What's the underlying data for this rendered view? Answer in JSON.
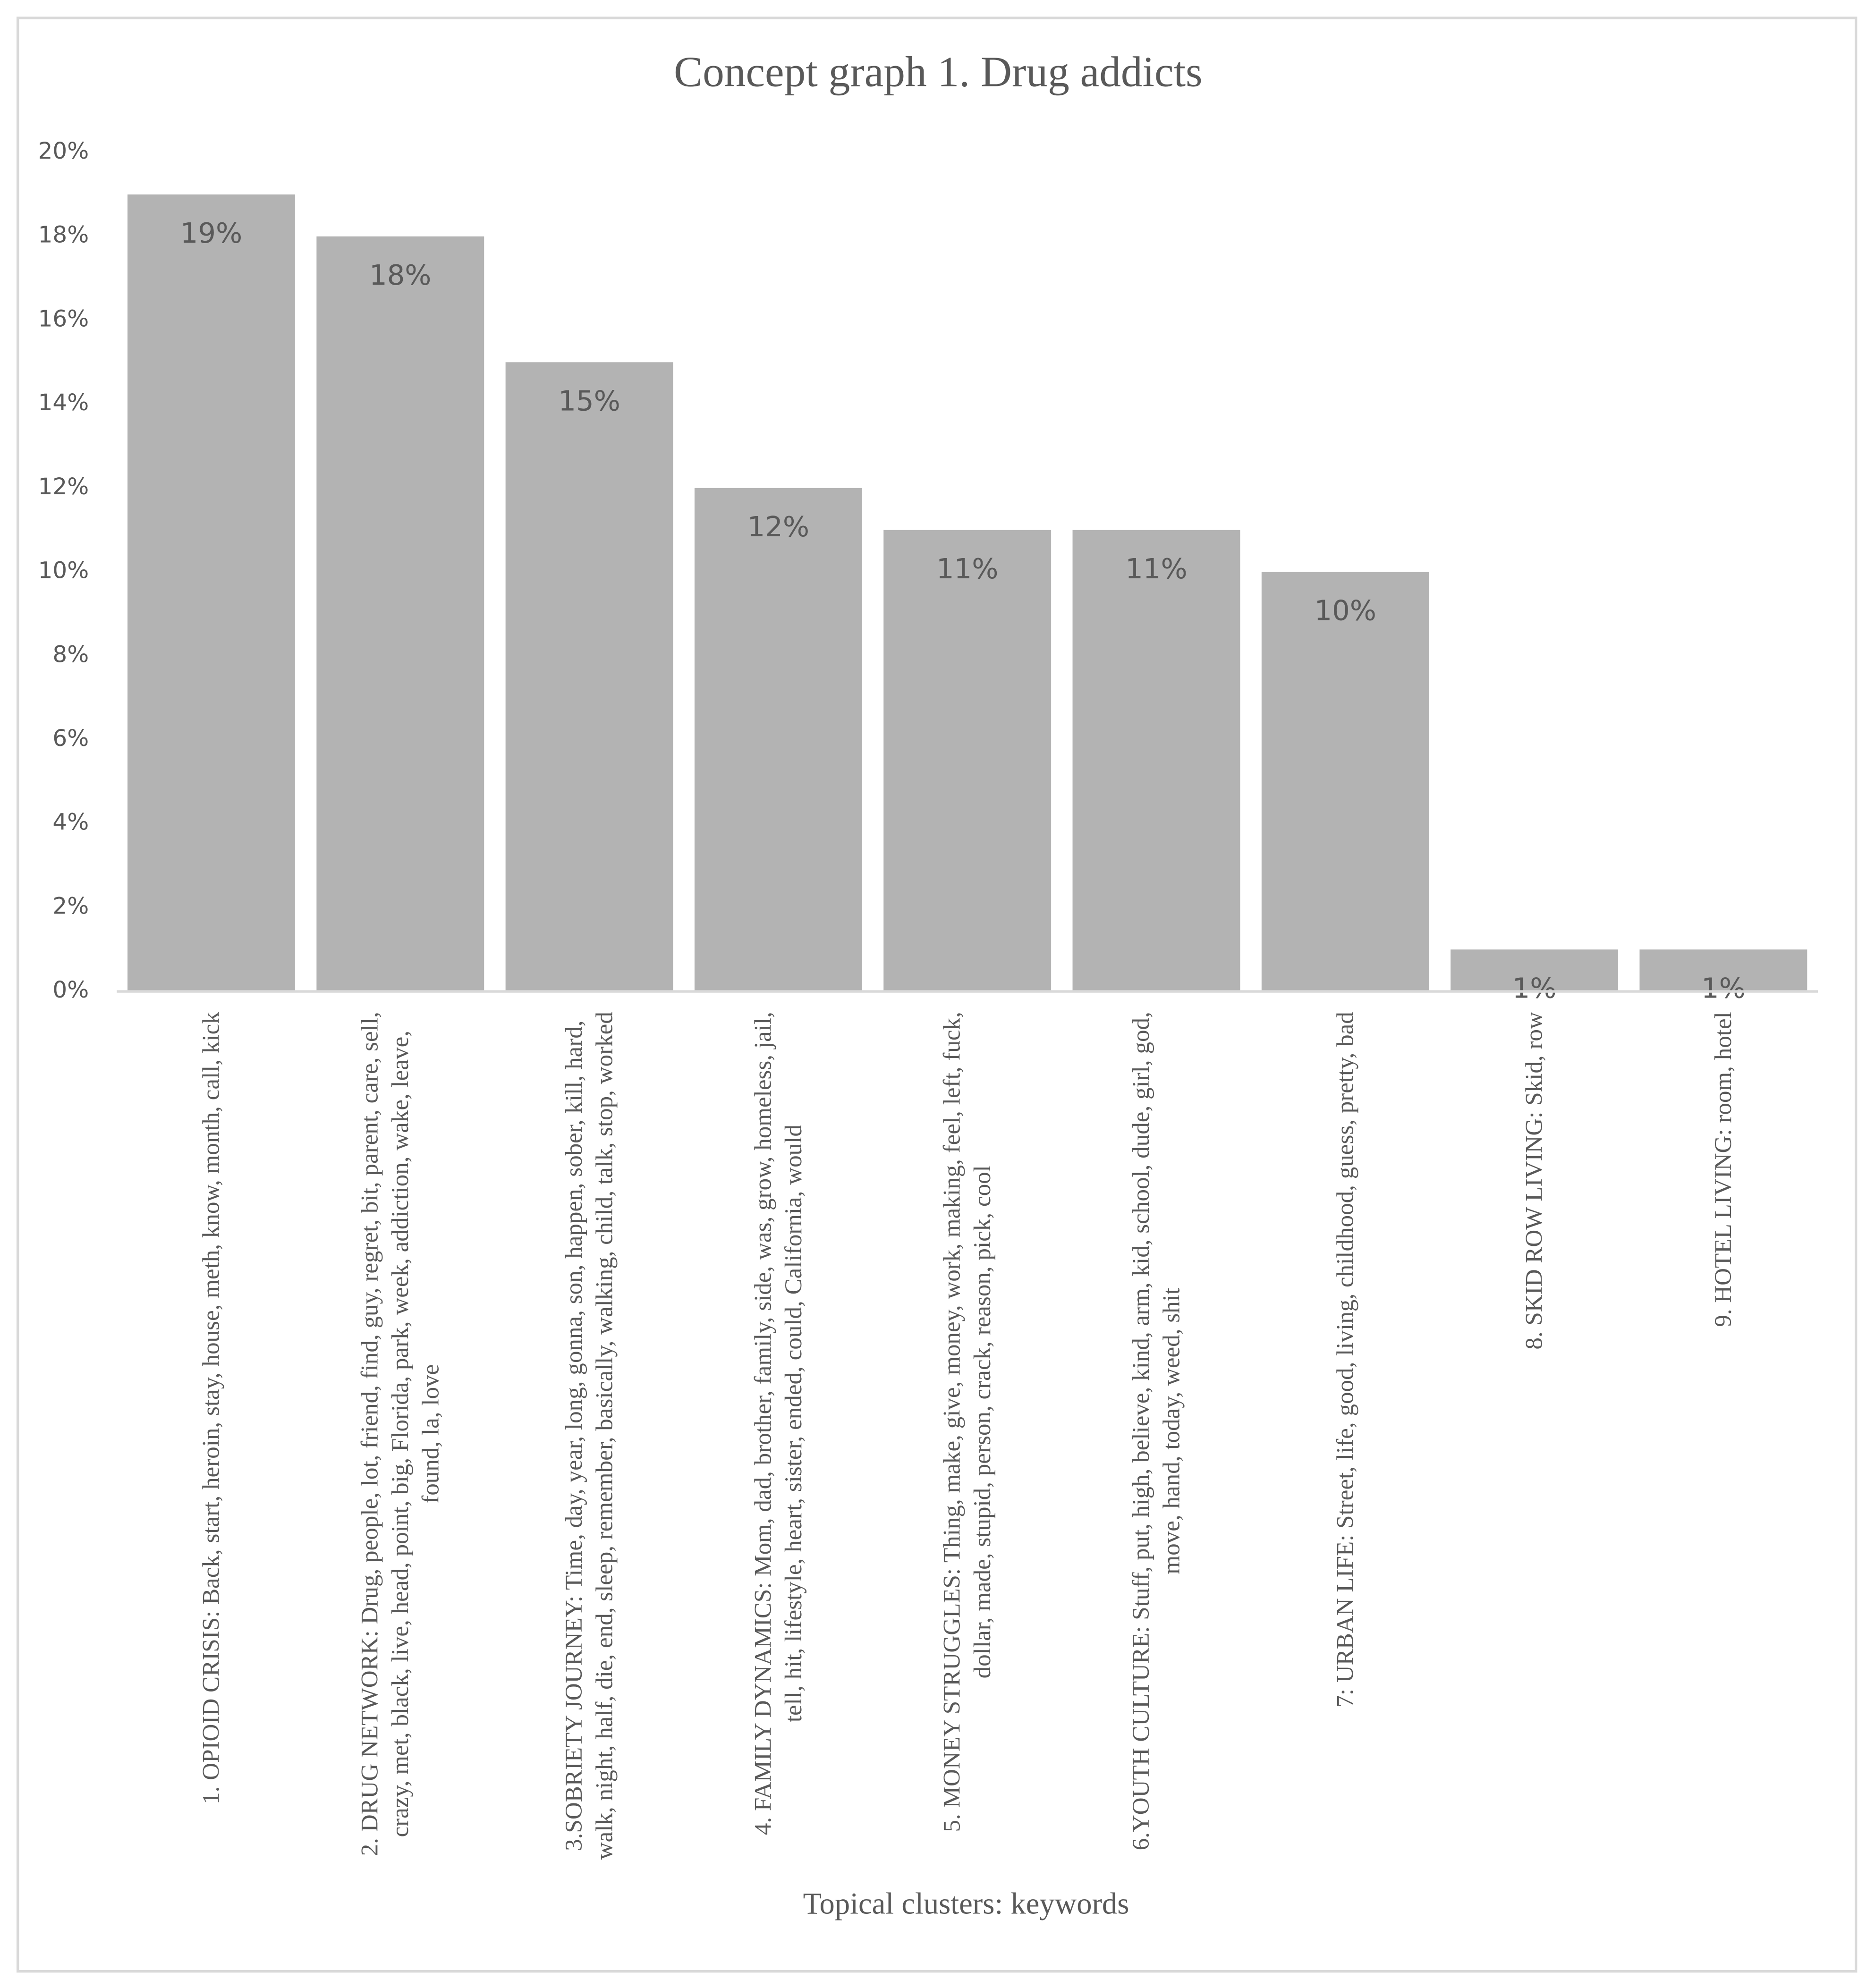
{
  "chart_data": {
    "type": "bar",
    "title": "Concept graph 1. Drug addicts",
    "x_label": "Topical clusters: keywords",
    "categories": [
      "1. OPIOID CRISIS: Back, start, heroin, stay, house, meth, know, month, call, kick",
      "2. DRUG NETWORK: Drug, people, lot, friend, find, guy, regret, bit, parent, care, sell, crazy, met, black, live, head, point, big, Florida, park, week, addiction, wake, leave, found, la, love",
      "3.SOBRIETY JOURNEY: Time, day, year, long, gonna, son, happen, sober, kill, hard, walk, night, half, die, end, sleep, remember, basically, walking, child, talk, stop, worked",
      "4. FAMILY DYNAMICS: Mom, dad, brother, family, side, was, grow, homeless, jail, tell, hit, lifestyle, heart, sister, ended, could, California, would",
      "5. MONEY STRUGGLES: Thing, make, give, money, work, making, feel, left, fuck, dollar, made, stupid, person, crack, reason, pick, cool",
      "6.YOUTH CULTURE: Stuff, put, high, believe, kind, arm, kid, school, dude, girl, god, move, hand, today, weed, shit",
      "7: URBAN LIFE: Street, life, good, living, childhood, guess, pretty, bad",
      "8. SKID ROW LIVING: Skid, row",
      "9. HOTEL LIVING: room, hotel"
    ],
    "values": [
      19,
      18,
      15,
      12,
      11,
      11,
      10,
      1,
      1
    ],
    "value_labels": [
      "19%",
      "18%",
      "15%",
      "12%",
      "11%",
      "11%",
      "10%",
      "1%",
      "1%"
    ],
    "color": "#b3b3b3",
    "ylim": [
      0,
      20
    ],
    "yticks": [
      {
        "value": 0,
        "label": "0%"
      },
      {
        "value": 2,
        "label": "2%"
      },
      {
        "value": 4,
        "label": "4%"
      },
      {
        "value": 6,
        "label": "6%"
      },
      {
        "value": 8,
        "label": "8%"
      },
      {
        "value": 10,
        "label": "10%"
      },
      {
        "value": 12,
        "label": "12%"
      },
      {
        "value": 14,
        "label": "14%"
      },
      {
        "value": 16,
        "label": "16%"
      },
      {
        "value": 18,
        "label": "18%"
      },
      {
        "value": 20,
        "label": "20%"
      }
    ],
    "grid": false
  }
}
